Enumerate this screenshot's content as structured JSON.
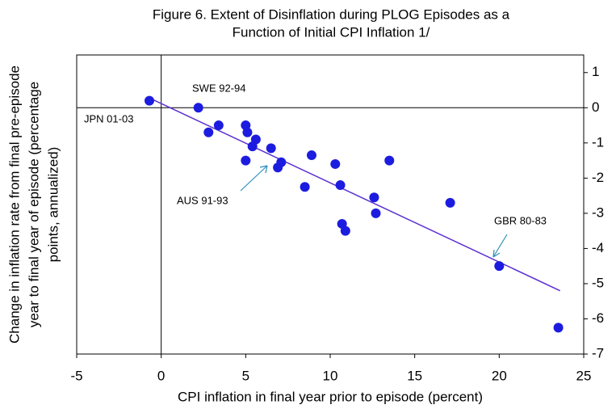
{
  "chart_data": {
    "type": "scatter",
    "title": [
      "Figure 6. Extent of Disinflation during PLOG Episodes as a",
      "Function of Initial CPI Inflation 1/"
    ],
    "x_label": "CPI inflation in final year prior to episode (percent)",
    "y_label": [
      "Change in inflation rate from final pre-episode",
      "year to final year of episode (percentage",
      "points, annualized)"
    ],
    "xlim": [
      -5,
      25
    ],
    "xticks": [
      -5,
      0,
      5,
      10,
      15,
      20,
      25
    ],
    "ylim": [
      -7,
      1.5
    ],
    "yticks": [
      -7,
      -6,
      -5,
      -4,
      -3,
      -2,
      -1,
      0,
      1
    ],
    "points": {
      "color": "#1c1ce0",
      "x": [
        -0.7,
        2.2,
        3.4,
        2.8,
        5.0,
        5.1,
        5.6,
        5.4,
        6.5,
        5.0,
        6.9,
        7.1,
        8.9,
        8.5,
        10.3,
        10.6,
        13.5,
        12.6,
        12.7,
        10.7,
        10.9,
        17.1,
        20.0,
        23.5
      ],
      "y": [
        0.2,
        0.0,
        -0.5,
        -0.7,
        -0.5,
        -0.7,
        -0.9,
        -1.1,
        -1.15,
        -1.5,
        -1.7,
        -1.55,
        -1.35,
        -2.25,
        -1.6,
        -2.2,
        -1.5,
        -2.55,
        -3.0,
        -3.3,
        -3.5,
        -2.7,
        -4.5,
        -6.25
      ]
    },
    "trend_line": {
      "color": "#5a2fd0",
      "x": [
        -0.8,
        23.6
      ],
      "y": [
        0.3,
        -5.2
      ]
    },
    "annotations": [
      "SWE 92-94",
      "JPN 01-03",
      "AUS 91-93",
      "GBR 80-83"
    ]
  }
}
